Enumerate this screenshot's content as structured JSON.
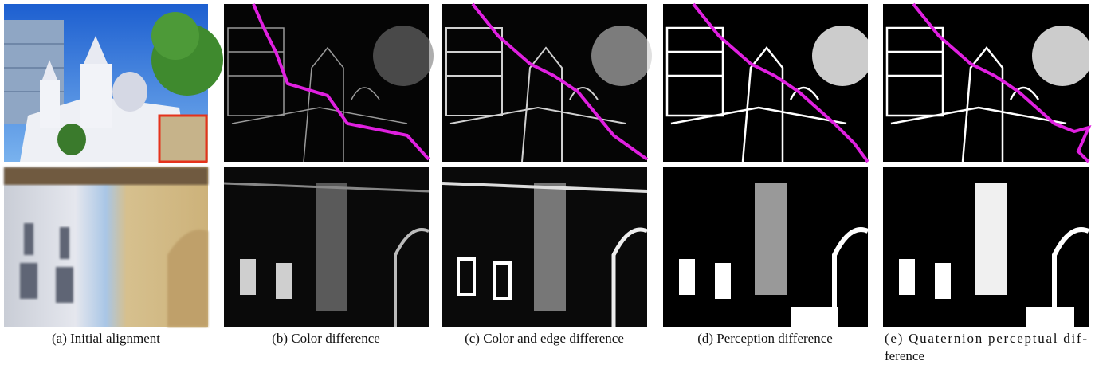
{
  "panels": [
    {
      "caption": [
        "(a) Initial alignment"
      ]
    },
    {
      "caption": [
        "(b) Color difference"
      ]
    },
    {
      "caption": [
        "(c) Color and edge difference"
      ]
    },
    {
      "caption": [
        "(d) Perception difference"
      ]
    },
    {
      "caption": [
        "(e) Quaternion perceptual dif-",
        "ference"
      ]
    }
  ]
}
